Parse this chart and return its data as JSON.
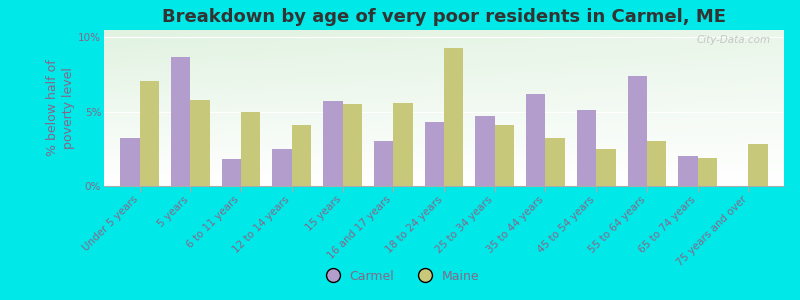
{
  "title": "Breakdown by age of very poor residents in Carmel, ME",
  "ylabel": "% below half of\npoverty level",
  "categories": [
    "Under 5 years",
    "5 years",
    "6 to 11 years",
    "12 to 14 years",
    "15 years",
    "16 and 17 years",
    "18 to 24 years",
    "25 to 34 years",
    "35 to 44 years",
    "45 to 54 years",
    "55 to 64 years",
    "65 to 74 years",
    "75 years and over"
  ],
  "carmel_values": [
    3.2,
    8.7,
    1.8,
    2.5,
    5.7,
    3.0,
    4.3,
    4.7,
    6.2,
    5.1,
    7.4,
    2.0,
    null
  ],
  "maine_values": [
    7.1,
    5.8,
    5.0,
    4.1,
    5.5,
    5.6,
    9.3,
    4.1,
    3.2,
    2.5,
    3.0,
    1.9,
    2.8
  ],
  "carmel_color": "#b39dcc",
  "maine_color": "#c8c87a",
  "background_color": "#00e8e8",
  "ylim": [
    0,
    10.5
  ],
  "yticks": [
    0,
    5,
    10
  ],
  "ytick_labels": [
    "0%",
    "5%",
    "10%"
  ],
  "bar_width": 0.38,
  "title_fontsize": 13,
  "axis_fontsize": 9,
  "tick_fontsize": 7.5,
  "legend_fontsize": 9,
  "label_color": "#886688",
  "tick_label_color": "#886688"
}
